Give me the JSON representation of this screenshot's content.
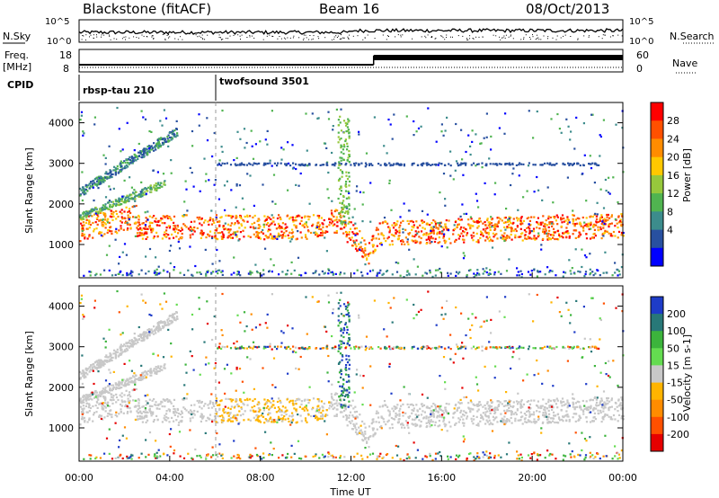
{
  "header": {
    "station": "Blackstone (fitACF)",
    "beam": "Beam 16",
    "date": "08/Oct/2013"
  },
  "side_labels": {
    "nsky": "N.Sky",
    "nsearch": "N.Search",
    "freq": "Freq.",
    "freq_unit": "[MHz]",
    "nave": "Nave",
    "cpid": "CPID"
  },
  "noise_axis": {
    "top": "10^5",
    "bottom": "10^0"
  },
  "freq_axis": {
    "left_ticks": [
      "18",
      "8"
    ],
    "right_ticks": [
      "60",
      "0"
    ]
  },
  "cpid_segments": [
    {
      "label": "rbsp-tau 210",
      "start_hour": 0
    },
    {
      "label": "twofsound 3501",
      "start_hour": 6
    }
  ],
  "colors": {
    "power_scale": [
      "#0000ff",
      "#2850a0",
      "#3c8c8c",
      "#50b450",
      "#96c83c",
      "#ffc800",
      "#ff8c00",
      "#ff5000",
      "#ff0000"
    ],
    "velocity_scale": [
      "#1e3cc8",
      "#287878",
      "#3cb43c",
      "#64dc50",
      "#c8c8c8",
      "#ffb400",
      "#ff8c00",
      "#ff5000",
      "#e60000"
    ]
  },
  "chart_data": [
    {
      "type": "heatmap",
      "name": "power",
      "ylabel": "Slant Range [km]",
      "yticks": [
        1000,
        2000,
        3000,
        4000
      ],
      "ylim": [
        180,
        4500
      ],
      "xlim": [
        0,
        24
      ],
      "colorbar": {
        "label": "Power [dB]",
        "ticks": [
          "4",
          "8",
          "12",
          "16",
          "20",
          "24",
          "28"
        ],
        "range": [
          0,
          30
        ]
      }
    },
    {
      "type": "heatmap",
      "name": "velocity",
      "ylabel": "Slant Range [km]",
      "yticks": [
        1000,
        2000,
        3000,
        4000
      ],
      "ylim": [
        180,
        4500
      ],
      "xlim": [
        0,
        24
      ],
      "colorbar": {
        "label": "Velocity [m s-1]",
        "ticks": [
          "200",
          "100",
          "50",
          "15",
          "-15",
          "-50",
          "-100",
          "-200"
        ],
        "range": [
          -250,
          250
        ]
      }
    }
  ],
  "x_axis": {
    "ticks": [
      "00:00",
      "04:00",
      "08:00",
      "12:00",
      "16:00",
      "20:00",
      "00:00"
    ],
    "label": "Time UT"
  }
}
